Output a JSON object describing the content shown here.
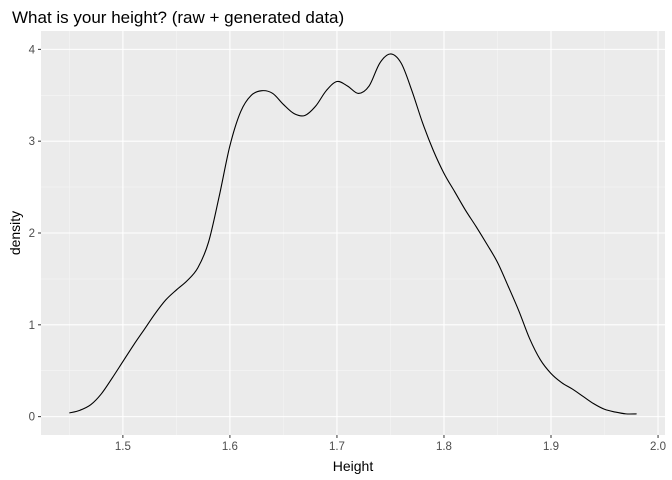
{
  "chart_data": {
    "type": "line",
    "title": "What is your height? (raw + generated data)",
    "xlabel": "Height",
    "ylabel": "density",
    "xlim": [
      1.45,
      1.98
    ],
    "ylim": [
      0,
      4
    ],
    "x_ticks": [
      1.5,
      1.6,
      1.7,
      1.8,
      1.9,
      2.0
    ],
    "x_tick_labels": [
      "1.5",
      "1.6",
      "1.7",
      "1.8",
      "1.9",
      "2.0"
    ],
    "y_ticks": [
      0,
      1,
      2,
      3,
      4
    ],
    "y_tick_labels": [
      "0",
      "1",
      "2",
      "3",
      "4"
    ],
    "grid": true,
    "legend": "none",
    "colors": {
      "panel": "#ebebeb",
      "grid_major": "#ffffff",
      "grid_minor": "#f5f5f5",
      "line": "#000000",
      "tick_text": "#4d4d4d"
    },
    "series": [
      {
        "x": [
          1.45,
          1.46,
          1.47,
          1.48,
          1.49,
          1.5,
          1.51,
          1.52,
          1.53,
          1.54,
          1.55,
          1.56,
          1.57,
          1.58,
          1.59,
          1.6,
          1.61,
          1.62,
          1.63,
          1.64,
          1.65,
          1.66,
          1.67,
          1.68,
          1.69,
          1.7,
          1.71,
          1.72,
          1.73,
          1.74,
          1.75,
          1.76,
          1.77,
          1.78,
          1.79,
          1.8,
          1.81,
          1.82,
          1.83,
          1.84,
          1.85,
          1.86,
          1.87,
          1.88,
          1.89,
          1.9,
          1.91,
          1.92,
          1.93,
          1.94,
          1.95,
          1.96,
          1.97,
          1.98
        ],
        "y": [
          0.04,
          0.07,
          0.13,
          0.25,
          0.42,
          0.6,
          0.78,
          0.95,
          1.12,
          1.27,
          1.38,
          1.48,
          1.62,
          1.9,
          2.4,
          2.95,
          3.32,
          3.5,
          3.55,
          3.52,
          3.4,
          3.3,
          3.28,
          3.38,
          3.55,
          3.65,
          3.6,
          3.52,
          3.6,
          3.85,
          3.95,
          3.85,
          3.55,
          3.2,
          2.9,
          2.65,
          2.45,
          2.25,
          2.07,
          1.88,
          1.68,
          1.42,
          1.15,
          0.85,
          0.62,
          0.47,
          0.37,
          0.3,
          0.22,
          0.14,
          0.08,
          0.05,
          0.03,
          0.03
        ]
      }
    ]
  }
}
